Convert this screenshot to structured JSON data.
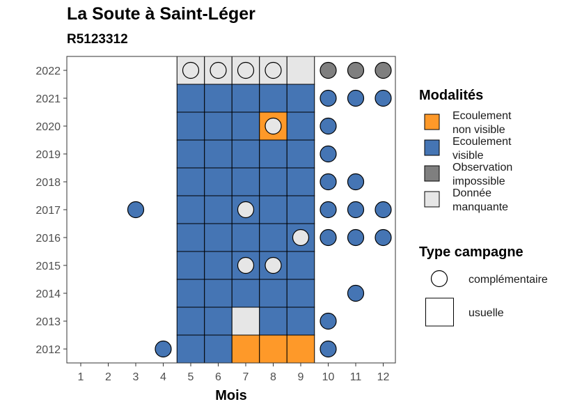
{
  "title": "La Soute à Saint-Léger",
  "subtitle": "R5123312",
  "chart_data": {
    "type": "heatmap",
    "xlabel": "Mois",
    "ylabel": "",
    "x_ticks": [
      "1",
      "2",
      "3",
      "4",
      "5",
      "6",
      "7",
      "8",
      "9",
      "10",
      "11",
      "12"
    ],
    "y_ticks": [
      "2012",
      "2013",
      "2014",
      "2015",
      "2016",
      "2017",
      "2018",
      "2019",
      "2020",
      "2021",
      "2022"
    ],
    "grid": false,
    "legend_position": "right",
    "colors": {
      "Ecoulement non visible": "#fe9929",
      "Ecoulement visible": "#4575b4",
      "Observation impossible": "#7f7f7f",
      "Donnée manquante": "#e6e6e6"
    },
    "legend_modalites": {
      "title": "Modalités",
      "items": [
        {
          "label": [
            "Ecoulement",
            "non visible"
          ],
          "key": "Ecoulement non visible"
        },
        {
          "label": [
            "Ecoulement",
            "visible"
          ],
          "key": "Ecoulement visible"
        },
        {
          "label": [
            "Observation",
            "impossible"
          ],
          "key": "Observation impossible"
        },
        {
          "label": [
            "Donnée",
            "manquante"
          ],
          "key": "Donnée manquante"
        }
      ]
    },
    "legend_type": {
      "title": "Type campagne",
      "items": [
        {
          "label": "complémentaire",
          "shape": "circle"
        },
        {
          "label": "usuelle",
          "shape": "square"
        }
      ]
    },
    "usuelle": [
      {
        "year": 2012,
        "month": 5,
        "modalite": "Ecoulement visible"
      },
      {
        "year": 2012,
        "month": 6,
        "modalite": "Ecoulement visible"
      },
      {
        "year": 2012,
        "month": 7,
        "modalite": "Ecoulement non visible"
      },
      {
        "year": 2012,
        "month": 8,
        "modalite": "Ecoulement non visible"
      },
      {
        "year": 2012,
        "month": 9,
        "modalite": "Ecoulement non visible"
      },
      {
        "year": 2013,
        "month": 5,
        "modalite": "Ecoulement visible"
      },
      {
        "year": 2013,
        "month": 6,
        "modalite": "Ecoulement visible"
      },
      {
        "year": 2013,
        "month": 7,
        "modalite": "Donnée manquante"
      },
      {
        "year": 2013,
        "month": 8,
        "modalite": "Ecoulement visible"
      },
      {
        "year": 2013,
        "month": 9,
        "modalite": "Ecoulement visible"
      },
      {
        "year": 2014,
        "month": 5,
        "modalite": "Ecoulement visible"
      },
      {
        "year": 2014,
        "month": 6,
        "modalite": "Ecoulement visible"
      },
      {
        "year": 2014,
        "month": 7,
        "modalite": "Ecoulement visible"
      },
      {
        "year": 2014,
        "month": 8,
        "modalite": "Ecoulement visible"
      },
      {
        "year": 2014,
        "month": 9,
        "modalite": "Ecoulement visible"
      },
      {
        "year": 2015,
        "month": 5,
        "modalite": "Ecoulement visible"
      },
      {
        "year": 2015,
        "month": 6,
        "modalite": "Ecoulement visible"
      },
      {
        "year": 2015,
        "month": 7,
        "modalite": "Ecoulement visible"
      },
      {
        "year": 2015,
        "month": 8,
        "modalite": "Ecoulement visible"
      },
      {
        "year": 2015,
        "month": 9,
        "modalite": "Ecoulement visible"
      },
      {
        "year": 2016,
        "month": 5,
        "modalite": "Ecoulement visible"
      },
      {
        "year": 2016,
        "month": 6,
        "modalite": "Ecoulement visible"
      },
      {
        "year": 2016,
        "month": 7,
        "modalite": "Ecoulement visible"
      },
      {
        "year": 2016,
        "month": 8,
        "modalite": "Ecoulement visible"
      },
      {
        "year": 2016,
        "month": 9,
        "modalite": "Ecoulement visible"
      },
      {
        "year": 2017,
        "month": 5,
        "modalite": "Ecoulement visible"
      },
      {
        "year": 2017,
        "month": 6,
        "modalite": "Ecoulement visible"
      },
      {
        "year": 2017,
        "month": 7,
        "modalite": "Ecoulement visible"
      },
      {
        "year": 2017,
        "month": 8,
        "modalite": "Ecoulement visible"
      },
      {
        "year": 2017,
        "month": 9,
        "modalite": "Ecoulement visible"
      },
      {
        "year": 2018,
        "month": 5,
        "modalite": "Ecoulement visible"
      },
      {
        "year": 2018,
        "month": 6,
        "modalite": "Ecoulement visible"
      },
      {
        "year": 2018,
        "month": 7,
        "modalite": "Ecoulement visible"
      },
      {
        "year": 2018,
        "month": 8,
        "modalite": "Ecoulement visible"
      },
      {
        "year": 2018,
        "month": 9,
        "modalite": "Ecoulement visible"
      },
      {
        "year": 2019,
        "month": 5,
        "modalite": "Ecoulement visible"
      },
      {
        "year": 2019,
        "month": 6,
        "modalite": "Ecoulement visible"
      },
      {
        "year": 2019,
        "month": 7,
        "modalite": "Ecoulement visible"
      },
      {
        "year": 2019,
        "month": 8,
        "modalite": "Ecoulement visible"
      },
      {
        "year": 2019,
        "month": 9,
        "modalite": "Ecoulement visible"
      },
      {
        "year": 2020,
        "month": 5,
        "modalite": "Ecoulement visible"
      },
      {
        "year": 2020,
        "month": 6,
        "modalite": "Ecoulement visible"
      },
      {
        "year": 2020,
        "month": 7,
        "modalite": "Ecoulement visible"
      },
      {
        "year": 2020,
        "month": 8,
        "modalite": "Ecoulement non visible"
      },
      {
        "year": 2020,
        "month": 9,
        "modalite": "Ecoulement visible"
      },
      {
        "year": 2021,
        "month": 5,
        "modalite": "Ecoulement visible"
      },
      {
        "year": 2021,
        "month": 6,
        "modalite": "Ecoulement visible"
      },
      {
        "year": 2021,
        "month": 7,
        "modalite": "Ecoulement visible"
      },
      {
        "year": 2021,
        "month": 8,
        "modalite": "Ecoulement visible"
      },
      {
        "year": 2021,
        "month": 9,
        "modalite": "Ecoulement visible"
      },
      {
        "year": 2022,
        "month": 5,
        "modalite": "Donnée manquante"
      },
      {
        "year": 2022,
        "month": 6,
        "modalite": "Donnée manquante"
      },
      {
        "year": 2022,
        "month": 7,
        "modalite": "Donnée manquante"
      },
      {
        "year": 2022,
        "month": 8,
        "modalite": "Donnée manquante"
      },
      {
        "year": 2022,
        "month": 9,
        "modalite": "Donnée manquante"
      }
    ],
    "complementaire": [
      {
        "year": 2012,
        "month": 4,
        "modalite": "Ecoulement visible"
      },
      {
        "year": 2012,
        "month": 10,
        "modalite": "Ecoulement visible"
      },
      {
        "year": 2013,
        "month": 10,
        "modalite": "Ecoulement visible"
      },
      {
        "year": 2014,
        "month": 11,
        "modalite": "Ecoulement visible"
      },
      {
        "year": 2015,
        "month": 7,
        "modalite": "Donnée manquante"
      },
      {
        "year": 2015,
        "month": 8,
        "modalite": "Donnée manquante"
      },
      {
        "year": 2016,
        "month": 9,
        "modalite": "Donnée manquante"
      },
      {
        "year": 2016,
        "month": 10,
        "modalite": "Ecoulement visible"
      },
      {
        "year": 2016,
        "month": 11,
        "modalite": "Ecoulement visible"
      },
      {
        "year": 2016,
        "month": 12,
        "modalite": "Ecoulement visible"
      },
      {
        "year": 2017,
        "month": 3,
        "modalite": "Ecoulement visible"
      },
      {
        "year": 2017,
        "month": 7,
        "modalite": "Donnée manquante"
      },
      {
        "year": 2017,
        "month": 10,
        "modalite": "Ecoulement visible"
      },
      {
        "year": 2017,
        "month": 11,
        "modalite": "Ecoulement visible"
      },
      {
        "year": 2017,
        "month": 12,
        "modalite": "Ecoulement visible"
      },
      {
        "year": 2018,
        "month": 10,
        "modalite": "Ecoulement visible"
      },
      {
        "year": 2018,
        "month": 11,
        "modalite": "Ecoulement visible"
      },
      {
        "year": 2019,
        "month": 10,
        "modalite": "Ecoulement visible"
      },
      {
        "year": 2020,
        "month": 8,
        "modalite": "Donnée manquante"
      },
      {
        "year": 2020,
        "month": 10,
        "modalite": "Ecoulement visible"
      },
      {
        "year": 2021,
        "month": 10,
        "modalite": "Ecoulement visible"
      },
      {
        "year": 2021,
        "month": 11,
        "modalite": "Ecoulement visible"
      },
      {
        "year": 2021,
        "month": 12,
        "modalite": "Ecoulement visible"
      },
      {
        "year": 2022,
        "month": 5,
        "modalite": "Donnée manquante"
      },
      {
        "year": 2022,
        "month": 6,
        "modalite": "Donnée manquante"
      },
      {
        "year": 2022,
        "month": 7,
        "modalite": "Donnée manquante"
      },
      {
        "year": 2022,
        "month": 8,
        "modalite": "Donnée manquante"
      },
      {
        "year": 2022,
        "month": 10,
        "modalite": "Observation impossible"
      },
      {
        "year": 2022,
        "month": 11,
        "modalite": "Observation impossible"
      },
      {
        "year": 2022,
        "month": 12,
        "modalite": "Observation impossible"
      }
    ]
  }
}
